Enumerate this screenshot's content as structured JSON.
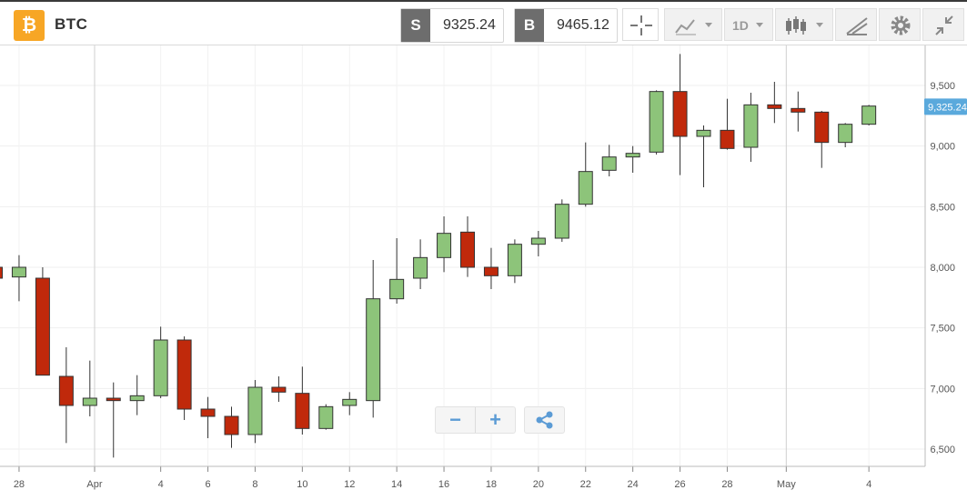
{
  "header": {
    "coin_glyph": "₿",
    "symbol": "BTC",
    "sell_tag": "S",
    "sell_price": "9325.24",
    "buy_tag": "B",
    "buy_price": "9465.12",
    "timeframe": "1D",
    "icons": [
      "crosshair-icon",
      "line-chart-icon",
      "candlestick-icon",
      "drawing-tools-icon",
      "gear-icon",
      "collapse-icon"
    ]
  },
  "colors": {
    "up": "#8dc47a",
    "down": "#c0290b",
    "last_price_tag": "#5aa9dc",
    "accent_blue": "#5b9bd5",
    "coin": "#f7a625"
  },
  "zoom_controls": {
    "minus": "−",
    "plus": "+",
    "share": "share-icon"
  },
  "chart_data": {
    "type": "candlestick",
    "last_price_label": "9,325.24",
    "y_ticks": [
      6500,
      7000,
      7500,
      8000,
      8500,
      9000,
      9500
    ],
    "y_tick_labels": [
      "6,500",
      "7,000",
      "7,500",
      "8,000",
      "8,500",
      "9,000",
      "9,500"
    ],
    "ylim": [
      6330,
      9850
    ],
    "x_tick_labels": [
      "28",
      "Apr",
      "4",
      "6",
      "8",
      "10",
      "12",
      "14",
      "16",
      "18",
      "20",
      "22",
      "24",
      "26",
      "28",
      "May",
      "4"
    ],
    "candles": [
      {
        "date": "Mar 27",
        "open": 8000,
        "high": 8080,
        "low": 7900,
        "close": 7910
      },
      {
        "date": "Mar 28",
        "open": 7920,
        "high": 8100,
        "low": 7720,
        "close": 8000
      },
      {
        "date": "Mar 29",
        "open": 7910,
        "high": 8000,
        "low": 7110,
        "close": 7110
      },
      {
        "date": "Mar 30",
        "open": 7100,
        "high": 7340,
        "low": 6550,
        "close": 6860
      },
      {
        "date": "Mar 31",
        "open": 6860,
        "high": 7230,
        "low": 6770,
        "close": 6920
      },
      {
        "date": "Apr 1",
        "open": 6920,
        "high": 7050,
        "low": 6430,
        "close": 6900
      },
      {
        "date": "Apr 2",
        "open": 6900,
        "high": 7110,
        "low": 6780,
        "close": 6940
      },
      {
        "date": "Apr 3",
        "open": 6940,
        "high": 7510,
        "low": 6920,
        "close": 7400
      },
      {
        "date": "Apr 4",
        "open": 7400,
        "high": 7430,
        "low": 6740,
        "close": 6830
      },
      {
        "date": "Apr 5",
        "open": 6830,
        "high": 6930,
        "low": 6590,
        "close": 6770
      },
      {
        "date": "Apr 6",
        "open": 6770,
        "high": 6850,
        "low": 6510,
        "close": 6620
      },
      {
        "date": "Apr 7",
        "open": 6620,
        "high": 7070,
        "low": 6550,
        "close": 7010
      },
      {
        "date": "Apr 8",
        "open": 7010,
        "high": 7100,
        "low": 6890,
        "close": 6970
      },
      {
        "date": "Apr 9",
        "open": 6960,
        "high": 7180,
        "low": 6620,
        "close": 6670
      },
      {
        "date": "Apr 10",
        "open": 6670,
        "high": 6870,
        "low": 6660,
        "close": 6850
      },
      {
        "date": "Apr 11",
        "open": 6860,
        "high": 6970,
        "low": 6780,
        "close": 6910
      },
      {
        "date": "Apr 12",
        "open": 6900,
        "high": 8060,
        "low": 6760,
        "close": 7740
      },
      {
        "date": "Apr 13",
        "open": 7740,
        "high": 8240,
        "low": 7700,
        "close": 7900
      },
      {
        "date": "Apr 14",
        "open": 7910,
        "high": 8230,
        "low": 7820,
        "close": 8080
      },
      {
        "date": "Apr 15",
        "open": 8080,
        "high": 8420,
        "low": 7960,
        "close": 8280
      },
      {
        "date": "Apr 16",
        "open": 8290,
        "high": 8420,
        "low": 7920,
        "close": 8000
      },
      {
        "date": "Apr 17",
        "open": 8000,
        "high": 8160,
        "low": 7820,
        "close": 7930
      },
      {
        "date": "Apr 18",
        "open": 7930,
        "high": 8230,
        "low": 7870,
        "close": 8190
      },
      {
        "date": "Apr 19",
        "open": 8190,
        "high": 8300,
        "low": 8090,
        "close": 8240
      },
      {
        "date": "Apr 20",
        "open": 8240,
        "high": 8560,
        "low": 8210,
        "close": 8520
      },
      {
        "date": "Apr 21",
        "open": 8520,
        "high": 9030,
        "low": 8500,
        "close": 8790
      },
      {
        "date": "Apr 22",
        "open": 8800,
        "high": 9010,
        "low": 8750,
        "close": 8910
      },
      {
        "date": "Apr 23",
        "open": 8910,
        "high": 9000,
        "low": 8780,
        "close": 8940
      },
      {
        "date": "Apr 24",
        "open": 8950,
        "high": 9460,
        "low": 8930,
        "close": 9450
      },
      {
        "date": "Apr 25",
        "open": 9450,
        "high": 9760,
        "low": 8760,
        "close": 9080
      },
      {
        "date": "Apr 26",
        "open": 9080,
        "high": 9170,
        "low": 8660,
        "close": 9130
      },
      {
        "date": "Apr 27",
        "open": 9130,
        "high": 9390,
        "low": 8970,
        "close": 8980
      },
      {
        "date": "Apr 28",
        "open": 8990,
        "high": 9440,
        "low": 8870,
        "close": 9340
      },
      {
        "date": "Apr 29",
        "open": 9340,
        "high": 9530,
        "low": 9190,
        "close": 9310
      },
      {
        "date": "Apr 30",
        "open": 9310,
        "high": 9450,
        "low": 9120,
        "close": 9280
      },
      {
        "date": "May 1",
        "open": 9280,
        "high": 9290,
        "low": 8820,
        "close": 9030
      },
      {
        "date": "May 2",
        "open": 9030,
        "high": 9190,
        "low": 8990,
        "close": 9180
      },
      {
        "date": "May 3",
        "open": 9180,
        "high": 9340,
        "low": 9170,
        "close": 9330
      }
    ]
  }
}
